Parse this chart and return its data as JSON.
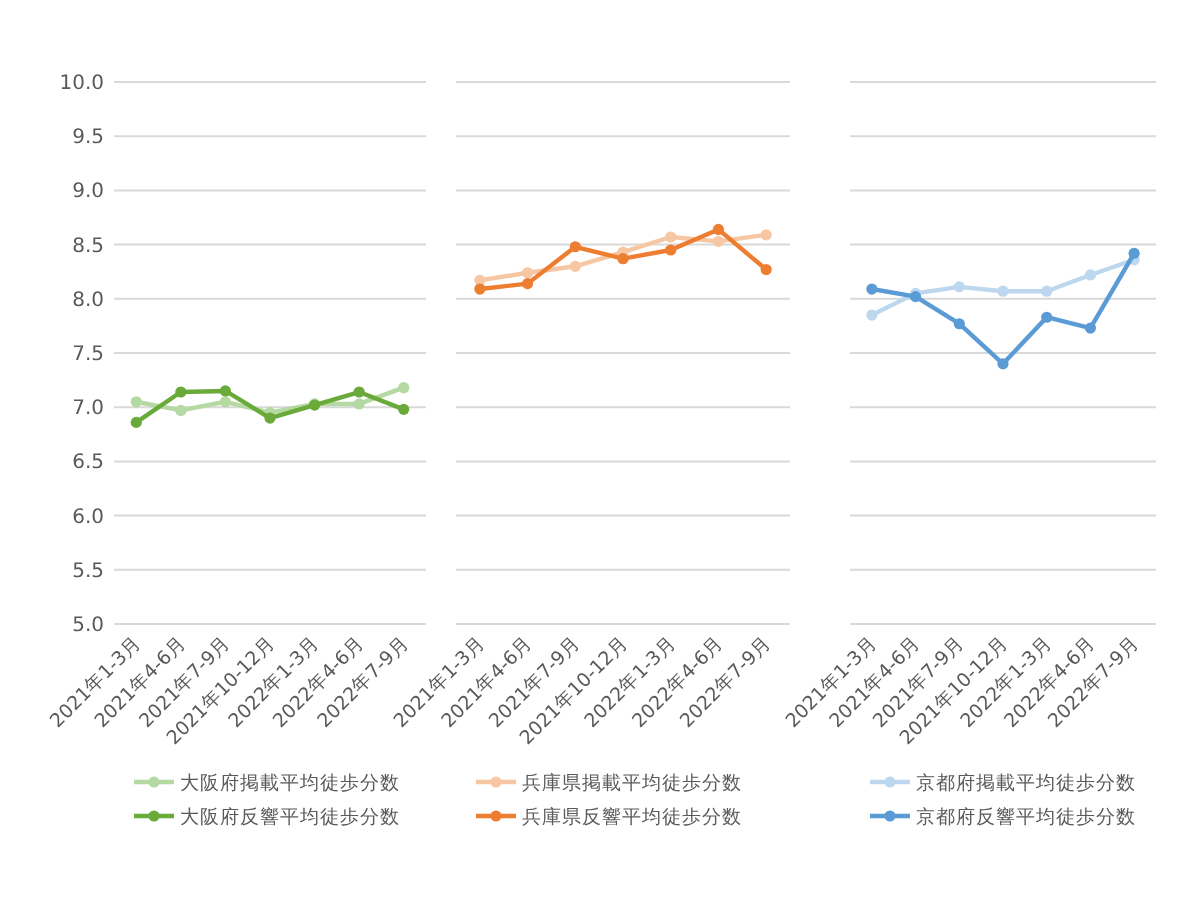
{
  "chart_data": [
    {
      "type": "line",
      "categories": [
        "2021年1-3月",
        "2021年4-6月",
        "2021年7-9月",
        "2021年10-12月",
        "2022年1-3月",
        "2022年4-6月",
        "2022年7-9月"
      ],
      "ylim": [
        5,
        10
      ],
      "yticks": [
        {
          "value": 5,
          "label": "5.0"
        },
        {
          "value": 5.5,
          "label": "5.5"
        },
        {
          "value": 6,
          "label": "6.0"
        },
        {
          "value": 6.5,
          "label": "6.5"
        },
        {
          "value": 7,
          "label": "7.0"
        },
        {
          "value": 7.5,
          "label": "7.5"
        },
        {
          "value": 8,
          "label": "8.0"
        },
        {
          "value": 8.5,
          "label": "8.5"
        },
        {
          "value": 9,
          "label": "9.0"
        },
        {
          "value": 9.5,
          "label": "9.5"
        },
        {
          "value": 10,
          "label": "10.0"
        }
      ],
      "grid": "y",
      "legend": "bottom",
      "marker": "circle",
      "series": [
        {
          "name": "大阪府掲載平均徒歩分数",
          "color": "#b5d9a2",
          "values": [
            7.05,
            6.97,
            7.05,
            6.95,
            7.03,
            7.03,
            7.18
          ]
        },
        {
          "name": "大阪府反響平均徒歩分数",
          "color": "#6aaa3a",
          "values": [
            6.86,
            7.14,
            7.15,
            6.9,
            7.02,
            7.14,
            6.98
          ]
        }
      ]
    },
    {
      "type": "line",
      "categories": [
        "2021年1-3月",
        "2021年4-6月",
        "2021年7-9月",
        "2021年10-12月",
        "2022年1-3月",
        "2022年4-6月",
        "2022年7-9月"
      ],
      "ylim": [
        5,
        10
      ],
      "yticks": [
        5,
        5.5,
        6,
        6.5,
        7,
        7.5,
        8,
        8.5,
        9,
        9.5,
        10
      ],
      "tick_labels": "x",
      "grid": "y",
      "legend": "bottom",
      "marker": "circle",
      "series": [
        {
          "name": "兵庫県掲載平均徒歩分数",
          "color": "#f7c6a3",
          "values": [
            8.17,
            8.24,
            8.3,
            8.43,
            8.57,
            8.53,
            8.59
          ]
        },
        {
          "name": "兵庫県反響平均徒歩分数",
          "color": "#ed7d31",
          "values": [
            8.09,
            8.14,
            8.48,
            8.37,
            8.45,
            8.64,
            8.27
          ]
        }
      ]
    },
    {
      "type": "line",
      "categories": [
        "2021年1-3月",
        "2021年4-6月",
        "2021年7-9月",
        "2021年10-12月",
        "2022年1-3月",
        "2022年4-6月",
        "2022年7-9月"
      ],
      "ylim": [
        5,
        10
      ],
      "yticks": [
        5,
        5.5,
        6,
        6.5,
        7,
        7.5,
        8,
        8.5,
        9,
        9.5,
        10
      ],
      "tick_labels": "x",
      "grid": "y",
      "legend": "bottom",
      "marker": "circle",
      "series": [
        {
          "name": "京都府掲載平均徒歩分数",
          "color": "#bdd7ee",
          "values": [
            7.85,
            8.05,
            8.11,
            8.07,
            8.07,
            8.22,
            8.36
          ]
        },
        {
          "name": "京都府反響平均徒歩分数",
          "color": "#5b9bd5",
          "values": [
            8.09,
            8.02,
            7.77,
            7.4,
            7.83,
            7.73,
            8.42
          ]
        }
      ]
    }
  ]
}
